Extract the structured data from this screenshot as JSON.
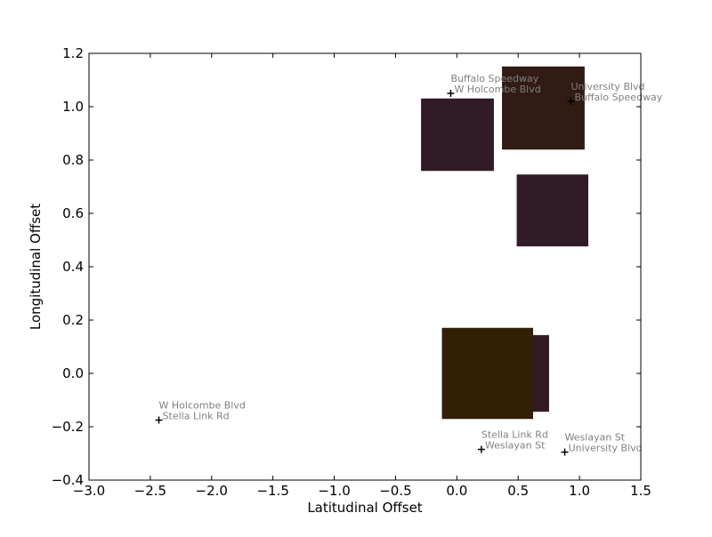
{
  "chart_data": {
    "type": "scatter",
    "xlabel": "Latitudinal Offset",
    "ylabel": "Longitudinal Offset",
    "xlim": [
      -3.0,
      1.5
    ],
    "ylim": [
      -0.4,
      1.2
    ],
    "xticks": [
      -3.0,
      -2.5,
      -2.0,
      -1.5,
      -1.0,
      -0.5,
      0.0,
      0.5,
      1.0,
      1.5
    ],
    "xtick_labels": [
      "−3.0",
      "−2.5",
      "−2.0",
      "−1.5",
      "−1.0",
      "−0.5",
      "0.0",
      "0.5",
      "1.0",
      "1.5"
    ],
    "yticks": [
      -0.4,
      -0.2,
      0.0,
      0.2,
      0.4,
      0.6,
      0.8,
      1.0,
      1.2
    ],
    "ytick_labels": [
      "−0.4",
      "−0.2",
      "0.0",
      "0.2",
      "0.4",
      "0.6",
      "0.8",
      "1.0",
      "1.2"
    ],
    "grid": false,
    "points": [
      {
        "x": 0.93,
        "y": 1.02,
        "label": [
          "University Blvd",
          "Buffalo Speedway"
        ]
      },
      {
        "x": -0.05,
        "y": 1.05,
        "label": [
          "Buffalo Speedway",
          "W Holcombe Blvd"
        ]
      },
      {
        "x": -2.43,
        "y": -0.175,
        "label": [
          "W Holcombe Blvd",
          "Stella Link Rd"
        ]
      },
      {
        "x": 0.2,
        "y": -0.285,
        "label": [
          "Stella Link Rd",
          "Weslayan St"
        ]
      },
      {
        "x": 0.88,
        "y": -0.295,
        "label": [
          "Weslayan St",
          "University Blvd"
        ]
      }
    ],
    "rectangles": [
      {
        "x0": -0.29,
        "x1": 0.3,
        "y0": 0.76,
        "y1": 1.03,
        "color": "#311b27"
      },
      {
        "x0": 0.37,
        "x1": 1.04,
        "y0": 0.84,
        "y1": 1.15,
        "color": "#311b14"
      },
      {
        "x0": 0.49,
        "x1": 1.07,
        "y0": 0.477,
        "y1": 0.745,
        "color": "#311b27"
      },
      {
        "x0": 0.48,
        "x1": 0.75,
        "y0": -0.143,
        "y1": 0.143,
        "color": "#311b27"
      },
      {
        "x0": -0.12,
        "x1": 0.62,
        "y0": -0.17,
        "y1": 0.17,
        "color": "#331f05"
      }
    ]
  }
}
